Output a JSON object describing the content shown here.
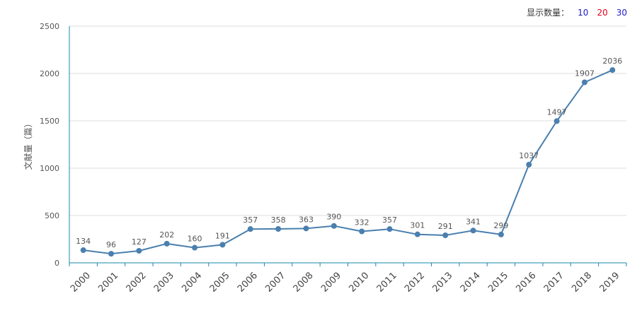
{
  "controls": {
    "label": "显示数量：",
    "options": [
      "10",
      "20",
      "30"
    ]
  },
  "chart_data": {
    "type": "line",
    "title": "",
    "xlabel": "",
    "ylabel": "文献量（篇）",
    "ylim": [
      0,
      2500
    ],
    "yticks": [
      0,
      500,
      1000,
      1500,
      2000,
      2500
    ],
    "grid": true,
    "categories": [
      "2000",
      "2001",
      "2002",
      "2003",
      "2004",
      "2005",
      "2006",
      "2007",
      "2008",
      "2009",
      "2010",
      "2011",
      "2012",
      "2013",
      "2014",
      "2015",
      "2016",
      "2017",
      "2018",
      "2019"
    ],
    "series": [
      {
        "values": [
          134,
          96,
          127,
          202,
          160,
          191,
          357,
          358,
          363,
          390,
          332,
          357,
          301,
          291,
          341,
          299,
          1037,
          1497,
          1907,
          2036
        ]
      }
    ],
    "colors": {
      "line": "#4a7fae",
      "axis": "#1a8aa8",
      "grid": "#dddddd"
    }
  }
}
